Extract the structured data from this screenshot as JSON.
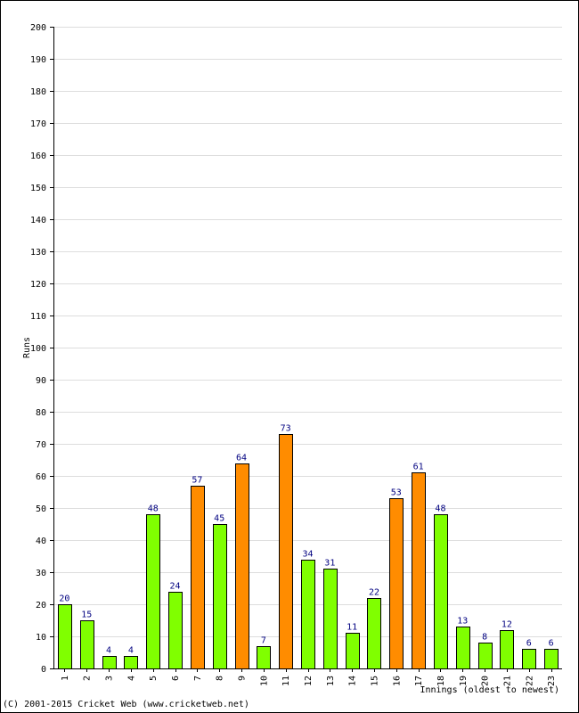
{
  "chart_data": {
    "type": "bar",
    "xlabel": "Innings (oldest to newest)",
    "ylabel": "Runs",
    "ylim": [
      0,
      200
    ],
    "ytick_step": 10,
    "grid": true,
    "categories": [
      "1",
      "2",
      "3",
      "4",
      "5",
      "6",
      "7",
      "8",
      "9",
      "10",
      "11",
      "12",
      "13",
      "14",
      "15",
      "16",
      "17",
      "18",
      "19",
      "20",
      "21",
      "22",
      "23"
    ],
    "values": [
      20,
      15,
      4,
      4,
      48,
      24,
      57,
      45,
      64,
      7,
      73,
      34,
      31,
      11,
      22,
      53,
      61,
      48,
      13,
      8,
      12,
      6,
      6
    ],
    "highlight_threshold": 50,
    "colors": {
      "normal": "#80ff00",
      "fifty": "#ff8c00",
      "label": "#000080",
      "grid": "#dddddd",
      "axis": "#000000"
    }
  },
  "footer": {
    "copyright": "(C) 2001-2015 Cricket Web (www.cricketweb.net)"
  }
}
